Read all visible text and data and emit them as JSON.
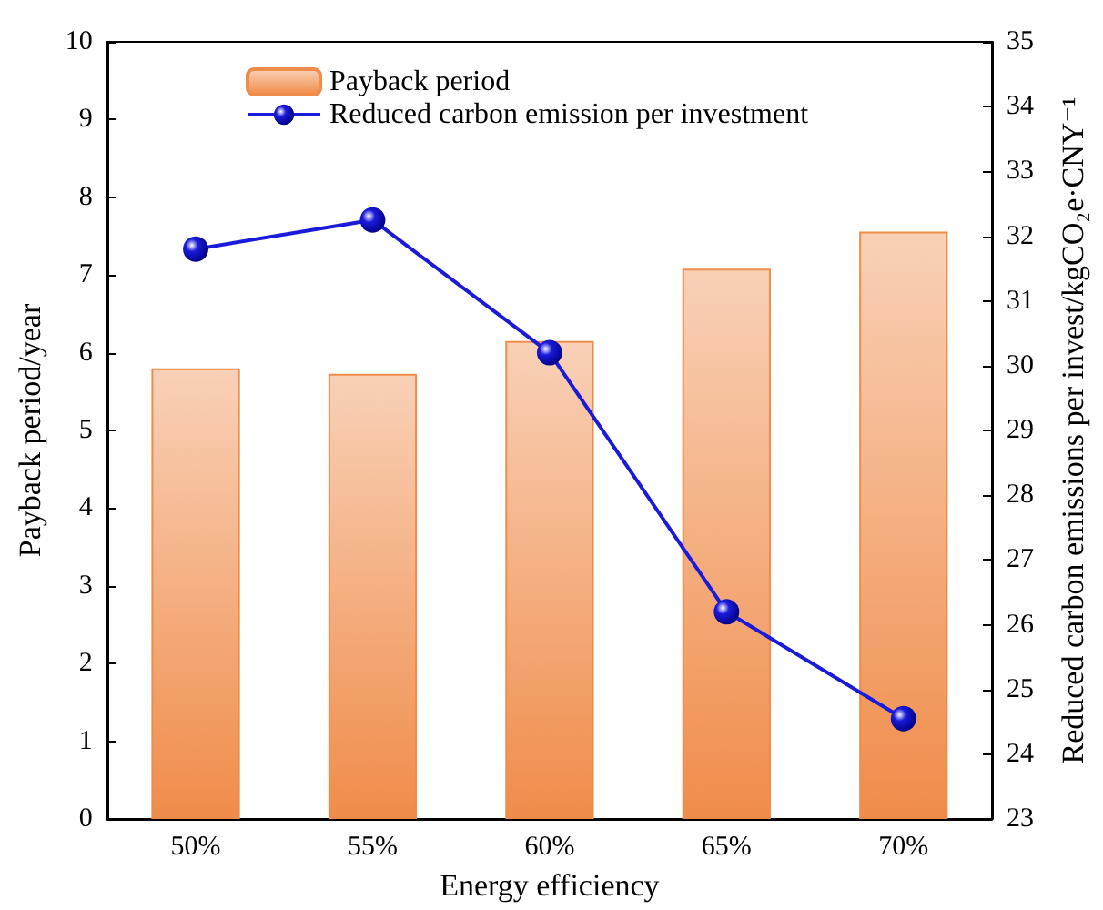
{
  "chart_data": {
    "type": "bar",
    "xlabel": "Energy efficiency",
    "ylabel": "Payback period/year",
    "y2label": "Reduced carbon emissions per invest/kgCO₂e·CNY⁻¹",
    "categories": [
      "50%",
      "55%",
      "60%",
      "65%",
      "70%"
    ],
    "series": [
      {
        "name": "Payback period",
        "color": "#f08c4a",
        "values": [
          5.8,
          5.73,
          6.15,
          7.08,
          7.56
        ]
      },
      {
        "name": "Reduced carbon emission per investment",
        "type": "line",
        "axis": "y2",
        "color": "#1a1adb",
        "marker": "circle",
        "values": [
          31.8,
          32.25,
          30.2,
          26.2,
          24.55
        ]
      }
    ],
    "ylim": [
      0,
      10
    ],
    "yticks": [
      0,
      1,
      2,
      3,
      4,
      5,
      6,
      7,
      8,
      9,
      10
    ],
    "y2lim": [
      23,
      35
    ],
    "y2ticks": [
      23,
      24,
      25,
      26,
      27,
      28,
      29,
      30,
      31,
      32,
      33,
      34,
      35
    ],
    "grid": false,
    "legend": "top left"
  }
}
